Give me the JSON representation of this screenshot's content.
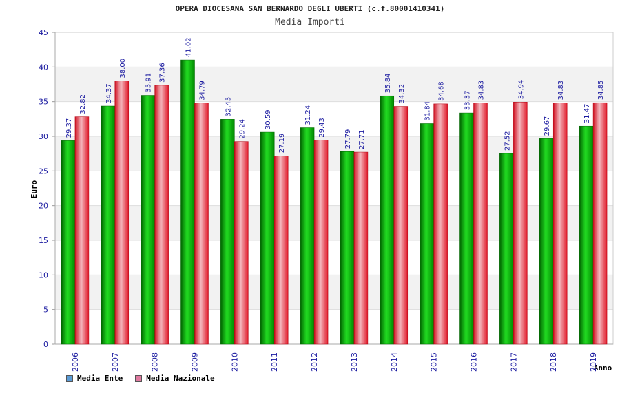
{
  "chart_data": {
    "type": "bar",
    "title": "OPERA DIOCESANA SAN BERNARDO DEGLI UBERTI (c.f.80001410341)",
    "subtitle": "Media Importi",
    "ylabel": "Euro",
    "xlabel": "Anno",
    "ylim": [
      0,
      45
    ],
    "yticks": [
      0,
      5,
      10,
      15,
      20,
      25,
      30,
      35,
      40,
      45
    ],
    "categories": [
      "2006",
      "2007",
      "2008",
      "2009",
      "2010",
      "2011",
      "2012",
      "2013",
      "2014",
      "2015",
      "2016",
      "2017",
      "2018",
      "2019"
    ],
    "series": [
      {
        "name": "Media Ente",
        "color": "#00b000",
        "legend_color": "#5b9bd5",
        "values": [
          29.37,
          34.37,
          35.91,
          41.02,
          32.45,
          30.59,
          31.24,
          27.79,
          35.84,
          31.84,
          33.37,
          27.52,
          29.67,
          31.47
        ]
      },
      {
        "name": "Media Nazionale",
        "color": "#e8283c",
        "legend_color": "#e07aa0",
        "values": [
          32.82,
          38.0,
          37.36,
          34.79,
          29.24,
          27.19,
          29.43,
          27.71,
          34.32,
          34.68,
          34.83,
          34.94,
          34.83,
          34.85
        ]
      }
    ],
    "value_labels": [
      [
        "29.37",
        "34.37",
        "35.91",
        "41.02",
        "32.45",
        "30.59",
        "31.24",
        "27.79",
        "35.84",
        "31.84",
        "33.37",
        "27.52",
        "29.67",
        "31.47"
      ],
      [
        "32.82",
        "38.00",
        "37.36",
        "34.79",
        "29.24",
        "27.19",
        "29.43",
        "27.71",
        "34.32",
        "34.68",
        "34.83",
        "34.94",
        "34.83",
        "34.85"
      ]
    ],
    "grid": true,
    "legend_position": "bottom-left"
  }
}
